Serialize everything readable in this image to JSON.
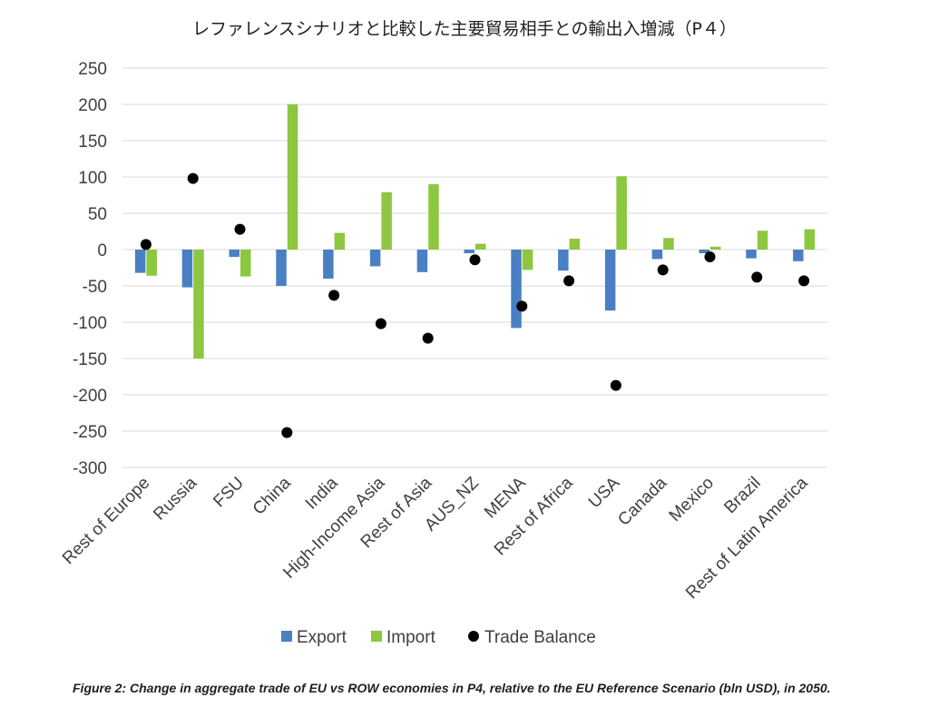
{
  "chart_data": {
    "type": "bar",
    "title": "レファレンスシナリオと比較した主要貿易相手との輸出入増減（P４）",
    "caption": "Figure 2: Change in aggregate trade of EU vs ROW economies in P4, relative to the EU Reference Scenario (bln USD), in 2050.",
    "categories": [
      "Rest of Europe",
      "Russia",
      "FSU",
      "China",
      "India",
      "High-Income Asia",
      "Rest of Asia",
      "AUS_NZ",
      "MENA",
      "Rest of Africa",
      "USA",
      "Canada",
      "Mexico",
      "Brazil",
      "Rest of Latin America"
    ],
    "series": [
      {
        "name": "Export",
        "kind": "bar",
        "color": "#4a7fc4",
        "values": [
          -32,
          -52,
          -10,
          -50,
          -40,
          -23,
          -31,
          -5,
          -108,
          -29,
          -84,
          -13,
          -5,
          -12,
          -16
        ]
      },
      {
        "name": "Import",
        "kind": "bar",
        "color": "#8dc63f",
        "values": [
          -36,
          -150,
          -37,
          200,
          23,
          79,
          90,
          8,
          -28,
          15,
          101,
          16,
          4,
          26,
          28
        ]
      },
      {
        "name": "Trade Balance",
        "kind": "scatter",
        "color": "#000000",
        "values": [
          7,
          98,
          28,
          -252,
          -63,
          -102,
          -122,
          -14,
          -78,
          -43,
          -187,
          -28,
          -10,
          -38,
          -43
        ]
      }
    ],
    "ylim": [
      -300,
      250
    ],
    "yticks": [
      "250",
      "200",
      "150",
      "100",
      "50",
      "0",
      "-50",
      "-100",
      "-150",
      "-200",
      "-250",
      "-300"
    ],
    "ytick_values": [
      250,
      200,
      150,
      100,
      50,
      0,
      -50,
      -100,
      -150,
      -200,
      -250,
      -300
    ],
    "grid": true,
    "legend_position": "bottom"
  }
}
